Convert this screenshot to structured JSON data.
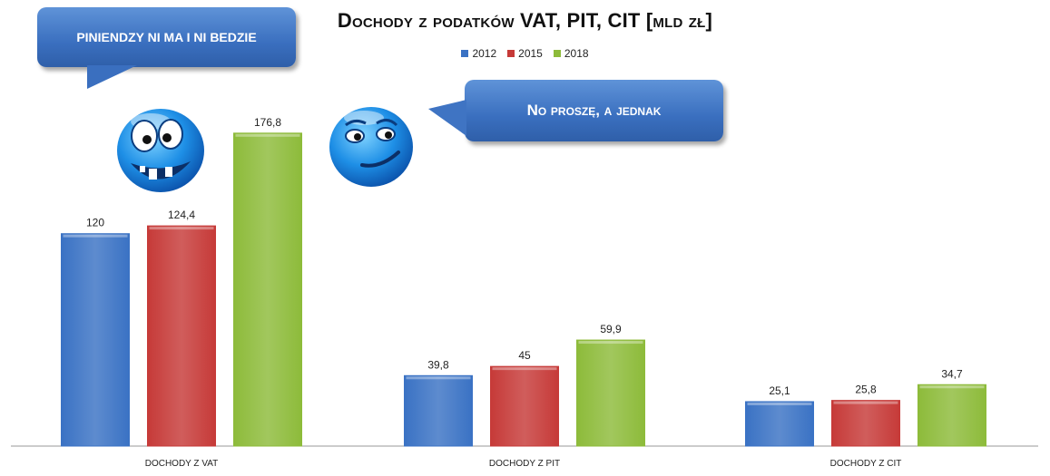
{
  "chart_data": {
    "type": "bar",
    "title": "Dochody z podatków VAT, PIT, CIT [mld zł]",
    "categories": [
      "DOCHODY Z VAT",
      "DOCHODY Z PIT",
      "DOCHODY Z CIT"
    ],
    "series": [
      {
        "name": "2012",
        "values": [
          120,
          39.8,
          25.1
        ],
        "labels": [
          "120",
          "39,8",
          "25,1"
        ],
        "color": "#3a72c4"
      },
      {
        "name": "2015",
        "values": [
          124.4,
          45,
          25.8
        ],
        "labels": [
          "124,4",
          "45",
          "25,8"
        ],
        "color": "#c63a38"
      },
      {
        "name": "2018",
        "values": [
          176.8,
          59.9,
          34.7
        ],
        "labels": [
          "176,8",
          "59,9",
          "34,7"
        ],
        "color": "#8dbb3a"
      }
    ],
    "ylim": [
      0,
      210
    ],
    "grid": false,
    "legend": "top-center"
  },
  "callouts": {
    "left": "PINIENDZY NI MA I NI BEDZIE",
    "right": "No proszę, a jednak"
  },
  "icons": [
    "smiley-crazy-icon",
    "smiley-smirk-icon"
  ]
}
